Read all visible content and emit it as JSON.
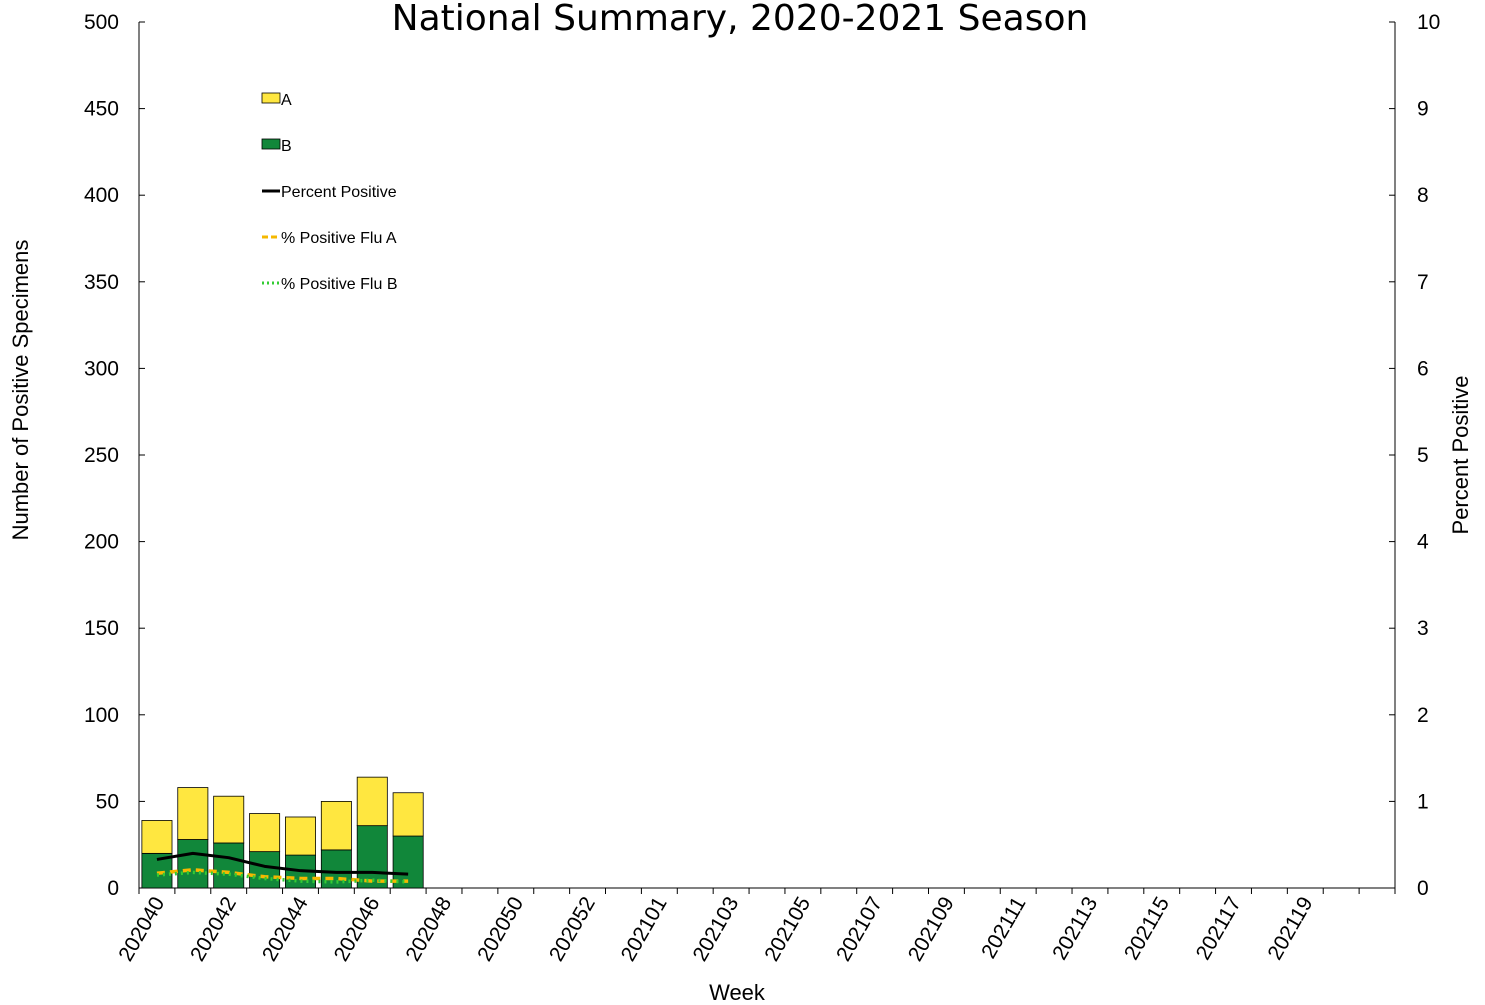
{
  "chart_data": {
    "type": "bar",
    "title": "National Summary, 2020-2021 Season",
    "xlabel": "Week",
    "ylabel_left": "Number of Positive Specimens",
    "ylabel_right": "Percent Positive",
    "ylim_left": [
      0,
      500
    ],
    "ylim_right": [
      0,
      10
    ],
    "yticks_left": [
      "0",
      "50",
      "100",
      "150",
      "200",
      "250",
      "300",
      "350",
      "400",
      "450",
      "500"
    ],
    "yticks_right": [
      "0",
      "1",
      "2",
      "3",
      "4",
      "5",
      "6",
      "7",
      "8",
      "9",
      "10"
    ],
    "grid": false,
    "stacked": true,
    "legend_placement": "upper-left",
    "week_count": 35,
    "categories": [
      "202040",
      "202041",
      "202042",
      "202043",
      "202044",
      "202045",
      "202046",
      "202047"
    ],
    "x_tick_labels": [
      "202040",
      "202042",
      "202044",
      "202046",
      "202048",
      "202050",
      "202052",
      "202101",
      "202103",
      "202105",
      "202107",
      "202109",
      "202111",
      "202113",
      "202115",
      "202117",
      "202119"
    ],
    "series": [
      {
        "name": "B",
        "type": "bar",
        "axis": "left",
        "color": "#11873a",
        "values": [
          20,
          28,
          26,
          21,
          19,
          22,
          36,
          30
        ]
      },
      {
        "name": "A",
        "type": "bar",
        "axis": "left",
        "color": "#ffe740",
        "values": [
          19,
          30,
          27,
          22,
          22,
          28,
          28,
          25
        ]
      },
      {
        "name": "Percent Positive",
        "type": "line",
        "axis": "right",
        "color": "#000000",
        "style": "solid",
        "values": [
          0.33,
          0.4,
          0.35,
          0.25,
          0.2,
          0.18,
          0.18,
          0.16
        ]
      },
      {
        "name": "% Positive Flu A",
        "type": "line",
        "axis": "right",
        "color": "#f5b800",
        "style": "dashed",
        "values": [
          0.17,
          0.21,
          0.18,
          0.13,
          0.11,
          0.11,
          0.08,
          0.08
        ]
      },
      {
        "name": "% Positive Flu B",
        "type": "line",
        "axis": "right",
        "color": "#33cc33",
        "style": "dotted",
        "values": [
          0.15,
          0.18,
          0.16,
          0.11,
          0.08,
          0.07,
          0.09,
          0.07
        ]
      }
    ],
    "legend": [
      "A",
      "B",
      "Percent Positive",
      "% Positive Flu A",
      "% Positive Flu B"
    ]
  }
}
